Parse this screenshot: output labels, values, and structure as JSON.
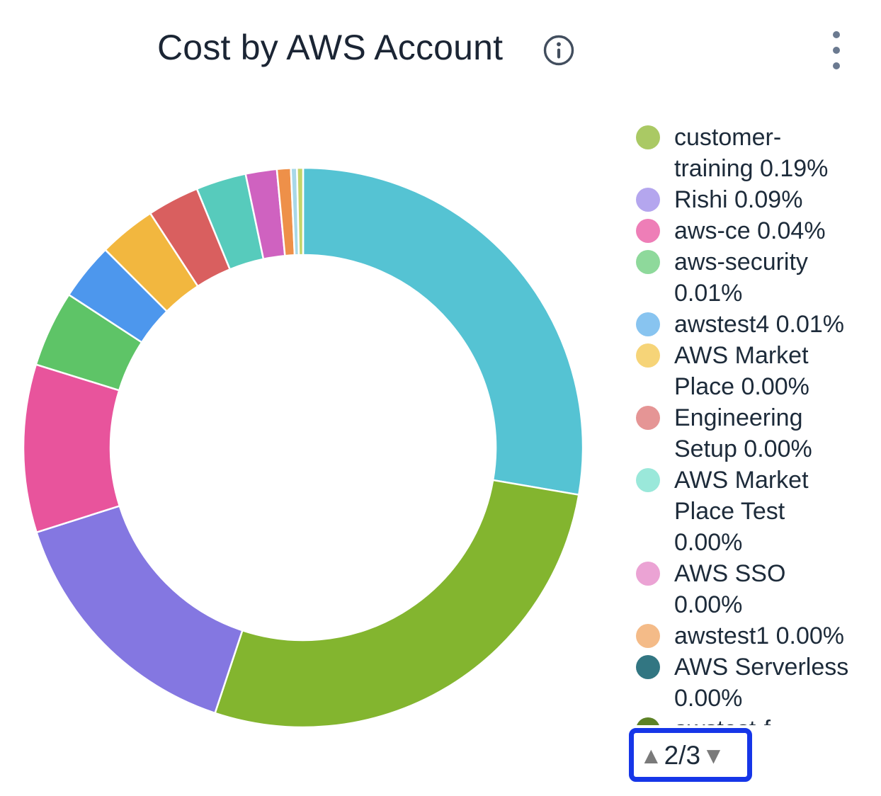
{
  "header": {
    "title": "Cost by AWS Account",
    "info_icon": "info",
    "menu_icon": "kebab-vertical"
  },
  "chart_data": {
    "type": "pie",
    "subtype": "donut",
    "title": "Cost by AWS Account",
    "legend_position": "right",
    "segments_note": "ring segments shown without labels (legend page 1 not visible); pct estimated from arc angles, clockwise from 12 o'clock",
    "segments": [
      {
        "label": "",
        "color": "#55c3d3",
        "pct": 27.7
      },
      {
        "label": "",
        "color": "#83b52f",
        "pct": 27.4
      },
      {
        "label": "",
        "color": "#8477e1",
        "pct": 15.0
      },
      {
        "label": "",
        "color": "#e8549c",
        "pct": 9.7
      },
      {
        "label": "",
        "color": "#5ec467",
        "pct": 4.4
      },
      {
        "label": "",
        "color": "#4d97ed",
        "pct": 3.3
      },
      {
        "label": "",
        "color": "#f2b73f",
        "pct": 3.3
      },
      {
        "label": "",
        "color": "#d95f5f",
        "pct": 3.0
      },
      {
        "label": "",
        "color": "#57cbbc",
        "pct": 2.9
      },
      {
        "label": "",
        "color": "#cf62c0",
        "pct": 1.8
      },
      {
        "label": "",
        "color": "#ee9049",
        "pct": 0.8
      },
      {
        "label": "",
        "color": "#a8d8e8",
        "pct": 0.35
      },
      {
        "label": "",
        "color": "#c4d46a",
        "pct": 0.35
      }
    ],
    "legend_page_items": [
      {
        "label": "customer-training",
        "pct_label": "0.19%",
        "color": "#aac964"
      },
      {
        "label": "Rishi",
        "pct_label": "0.09%",
        "color": "#b4a6ee"
      },
      {
        "label": "aws-ce",
        "pct_label": "0.04%",
        "color": "#ee7eb7"
      },
      {
        "label": "aws-security",
        "pct_label": "0.01%",
        "color": "#8ed99b"
      },
      {
        "label": "awstest4",
        "pct_label": "0.01%",
        "color": "#88c4f0"
      },
      {
        "label": "AWS Market Place",
        "pct_label": "0.00%",
        "color": "#f6d478"
      },
      {
        "label": "Engineering Setup",
        "pct_label": "0.00%",
        "color": "#e59595"
      },
      {
        "label": "AWS Market Place Test",
        "pct_label": "0.00%",
        "color": "#9ae8da"
      },
      {
        "label": "AWS SSO",
        "pct_label": "0.00%",
        "color": "#eba3d4"
      },
      {
        "label": "awstest1",
        "pct_label": "0.00%",
        "color": "#f4bb88"
      },
      {
        "label": "AWS Serverless",
        "pct_label": "0.00%",
        "color": "#327682"
      },
      {
        "label": "awstest-f",
        "pct_label": "",
        "color": "#5d8226",
        "partially_hidden": true
      }
    ]
  },
  "pagination": {
    "up_icon": "▲",
    "page_label": "2/3",
    "down_icon": "▼",
    "highlight_color": "#1636e8"
  },
  "colors": {
    "title_text": "#1b2534",
    "legend_text": "#1d2b3a",
    "icon_gray": "#6b7a90",
    "pager_arrow_gray": "#7a7a7a",
    "gap_white": "#ffffff"
  }
}
